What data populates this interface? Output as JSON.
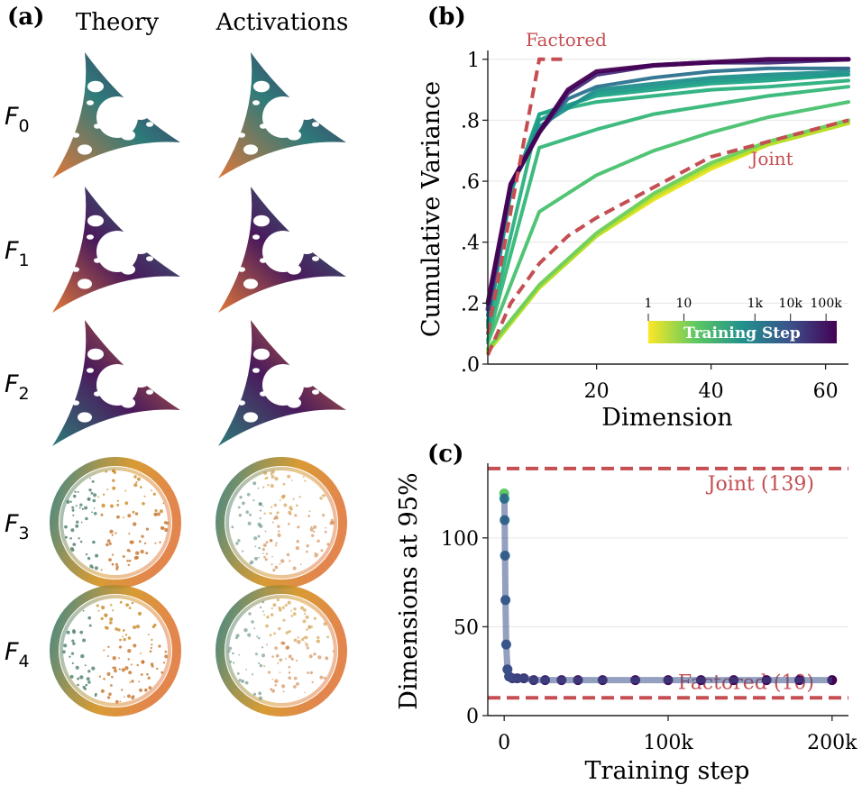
{
  "panel_a": {
    "label": "(a)",
    "col_theory": "Theory",
    "col_activations": "Activations",
    "rows": [
      {
        "sym": "F",
        "sub": "0",
        "shape": "triangle",
        "rotation": 0
      },
      {
        "sym": "F",
        "sub": "1",
        "shape": "triangle",
        "rotation": 1
      },
      {
        "sym": "F",
        "sub": "2",
        "shape": "triangle",
        "rotation": 2
      },
      {
        "sym": "F",
        "sub": "3",
        "shape": "disc"
      },
      {
        "sym": "F",
        "sub": "4",
        "shape": "disc"
      }
    ],
    "colors": {
      "purple": "#4a1a5c",
      "teal": "#2e7b7a",
      "orange": "#e0783a",
      "gold": "#d4901e"
    }
  },
  "chart_data": [
    {
      "panel": "(b)",
      "type": "line",
      "xlabel": "Dimension",
      "ylabel": "Cumulative Variance",
      "xlim": [
        1,
        64
      ],
      "ylim": [
        0,
        1.02
      ],
      "xticks": [
        20,
        40,
        60
      ],
      "xtick_labels": [
        "20",
        "40",
        "60"
      ],
      "yticks": [
        0,
        0.2,
        0.4,
        0.6,
        0.8,
        1.0
      ],
      "ytick_labels": [
        ".0",
        ".2",
        ".4",
        ".6",
        ".8",
        "1"
      ],
      "grid": "horizontal",
      "annotations": {
        "factored": "Factored",
        "joint": "Joint"
      },
      "reference_color": "#c44e52",
      "reference_series": [
        {
          "label": "Factored",
          "x": [
            1,
            10,
            15
          ],
          "y": [
            0.1,
            1.0,
            1.0
          ]
        },
        {
          "label": "Joint",
          "x": [
            1,
            5,
            10,
            15,
            20,
            30,
            40,
            50,
            64
          ],
          "y": [
            0.03,
            0.2,
            0.33,
            0.42,
            0.48,
            0.58,
            0.68,
            0.73,
            0.8
          ]
        }
      ],
      "training_series": [
        {
          "step": 1,
          "color": "#e8e419",
          "x": [
            1,
            10,
            20,
            30,
            40,
            50,
            64
          ],
          "y": [
            0.04,
            0.25,
            0.42,
            0.54,
            0.64,
            0.72,
            0.79
          ]
        },
        {
          "step": 3,
          "color": "#b5de2b",
          "x": [
            1,
            10,
            20,
            30,
            40,
            50,
            64
          ],
          "y": [
            0.04,
            0.25,
            0.42,
            0.55,
            0.65,
            0.72,
            0.79
          ]
        },
        {
          "step": 10,
          "color": "#6ccd5a",
          "x": [
            1,
            10,
            20,
            30,
            40,
            50,
            64
          ],
          "y": [
            0.05,
            0.26,
            0.43,
            0.56,
            0.66,
            0.73,
            0.8
          ]
        },
        {
          "step": 30,
          "color": "#48c16e",
          "x": [
            1,
            10,
            20,
            30,
            40,
            50,
            64
          ],
          "y": [
            0.07,
            0.5,
            0.62,
            0.7,
            0.76,
            0.81,
            0.86
          ]
        },
        {
          "step": 100,
          "color": "#35b779",
          "x": [
            1,
            10,
            20,
            30,
            40,
            50,
            64
          ],
          "y": [
            0.08,
            0.71,
            0.77,
            0.82,
            0.85,
            0.88,
            0.91
          ]
        },
        {
          "step": 300,
          "color": "#2ab07f",
          "x": [
            1,
            10,
            20,
            30,
            40,
            50,
            64
          ],
          "y": [
            0.1,
            0.82,
            0.86,
            0.88,
            0.9,
            0.91,
            0.93
          ]
        },
        {
          "step": 1000,
          "color": "#20a486",
          "x": [
            1,
            5,
            10,
            20,
            30,
            40,
            50,
            64
          ],
          "y": [
            0.12,
            0.56,
            0.82,
            0.88,
            0.9,
            0.92,
            0.93,
            0.95
          ]
        },
        {
          "step": 3000,
          "color": "#1f9a8a",
          "x": [
            1,
            5,
            10,
            20,
            30,
            40,
            50,
            64
          ],
          "y": [
            0.13,
            0.57,
            0.8,
            0.89,
            0.91,
            0.93,
            0.94,
            0.95
          ]
        },
        {
          "step": 10000,
          "color": "#21908d",
          "x": [
            1,
            5,
            10,
            20,
            30,
            40,
            50,
            64
          ],
          "y": [
            0.14,
            0.58,
            0.78,
            0.9,
            0.92,
            0.94,
            0.95,
            0.96
          ]
        },
        {
          "step": 30000,
          "color": "#2c728e",
          "x": [
            1,
            5,
            10,
            15,
            20,
            30,
            40,
            50,
            64
          ],
          "y": [
            0.16,
            0.58,
            0.76,
            0.87,
            0.91,
            0.94,
            0.96,
            0.97,
            0.97
          ]
        },
        {
          "step": 100000,
          "color": "#472d7b",
          "x": [
            1,
            5,
            10,
            15,
            20,
            30,
            40,
            50,
            64
          ],
          "y": [
            0.18,
            0.59,
            0.76,
            0.89,
            0.95,
            0.98,
            0.99,
            0.99,
            1.0
          ]
        },
        {
          "step": 200000,
          "color": "#440154",
          "x": [
            1,
            5,
            10,
            15,
            20,
            30,
            40,
            50,
            64
          ],
          "y": [
            0.2,
            0.59,
            0.76,
            0.9,
            0.96,
            0.98,
            0.99,
            1.0,
            1.0
          ]
        }
      ],
      "colorbar": {
        "title": "Training Step",
        "tick_labels": [
          "1",
          "10",
          "1k",
          "10k",
          "100k"
        ],
        "tick_values": [
          1,
          10,
          1000,
          10000,
          100000
        ],
        "range": [
          1,
          200000
        ],
        "scale": "log",
        "colors": [
          "#fde725",
          "#5ec962",
          "#21918c",
          "#3b528b",
          "#440154"
        ]
      }
    },
    {
      "panel": "(c)",
      "type": "scatter",
      "xlabel": "Training step",
      "ylabel": "Dimensions at 95%",
      "xlim": [
        -10000,
        210000
      ],
      "ylim": [
        0,
        142
      ],
      "xticks": [
        0,
        100000,
        200000
      ],
      "xtick_labels": [
        "0",
        "100k",
        "200k"
      ],
      "yticks": [
        0,
        50,
        100
      ],
      "ytick_labels": [
        "0",
        "50",
        "100"
      ],
      "grid": "horizontal",
      "reference_color": "#c44e52",
      "reference_lines": [
        {
          "label": "Joint (139)",
          "value": 139
        },
        {
          "label": "Factored (10)",
          "value": 10
        }
      ],
      "x": [
        0,
        100,
        300,
        500,
        800,
        1200,
        2000,
        3000,
        5000,
        8000,
        12000,
        18000,
        25000,
        35000,
        45000,
        60000,
        80000,
        100000,
        120000,
        140000,
        160000,
        180000,
        200000
      ],
      "y": [
        125,
        122,
        110,
        90,
        65,
        40,
        26,
        22,
        21,
        21,
        21,
        20,
        20,
        20,
        20,
        20,
        20,
        20,
        20,
        20,
        20,
        20,
        20
      ]
    }
  ]
}
